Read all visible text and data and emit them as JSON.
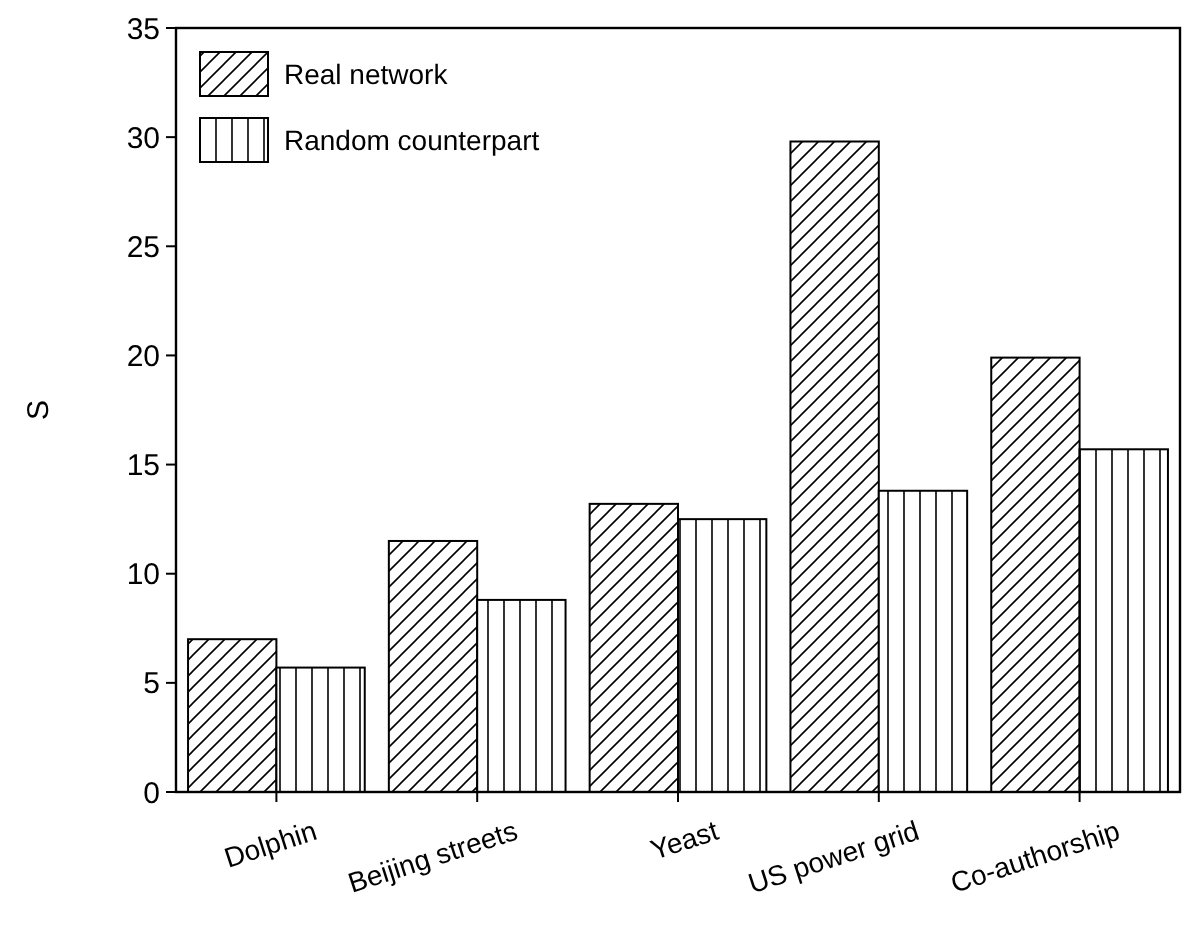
{
  "chart_data": {
    "type": "bar",
    "ylabel": "S",
    "categories": [
      "Dolphin",
      "Beijing streets",
      "Yeast",
      "US power grid",
      "Co-authorship"
    ],
    "series": [
      {
        "name": "Real network",
        "color": "#000000",
        "values": [
          7.0,
          11.5,
          13.2,
          29.8,
          19.9
        ]
      },
      {
        "name": "Random counterpart",
        "color": "#000000",
        "values": [
          5.7,
          8.8,
          12.5,
          13.8,
          15.7
        ]
      }
    ],
    "ylim": [
      0,
      35
    ],
    "yticks": [
      0,
      5,
      10,
      15,
      20,
      25,
      30,
      35
    ],
    "legend": "top left",
    "grid": false
  }
}
